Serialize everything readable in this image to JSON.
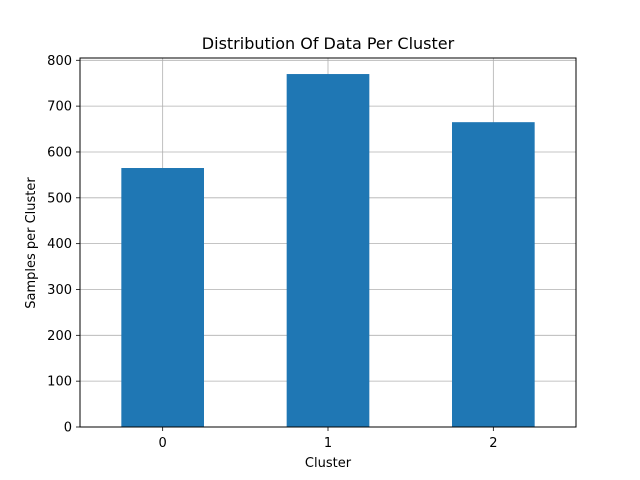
{
  "chart_data": {
    "type": "bar",
    "title": "Distribution Of Data Per Cluster",
    "xlabel": "Cluster",
    "ylabel": "Samples per Cluster",
    "categories": [
      "0",
      "1",
      "2"
    ],
    "values": [
      565,
      770,
      665
    ],
    "ylim": [
      0,
      805
    ],
    "yticks": [
      0,
      100,
      200,
      300,
      400,
      500,
      600,
      700,
      800
    ],
    "grid": true,
    "bar_color": "#1f77b4"
  }
}
